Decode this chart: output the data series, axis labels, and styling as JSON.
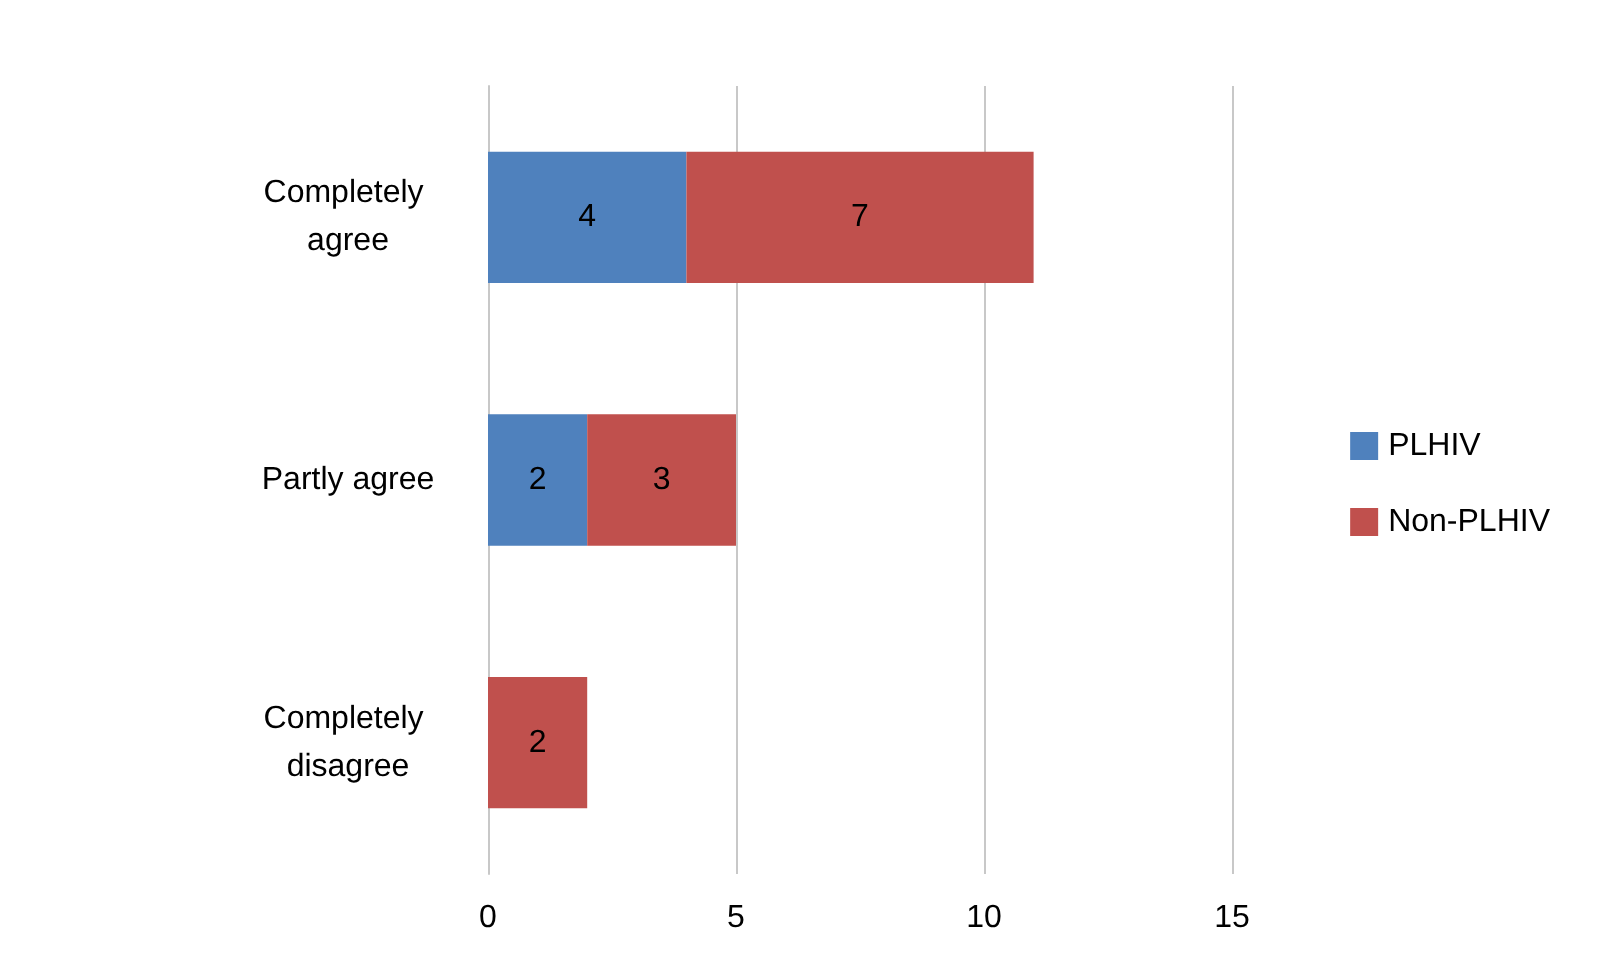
{
  "chart_data": {
    "type": "bar",
    "orientation": "horizontal",
    "stacked": true,
    "categories": [
      "Completely agree",
      "Partly agree",
      "Completely disagree"
    ],
    "series": [
      {
        "name": "PLHIV",
        "color": "#4f81bd",
        "values": [
          4,
          2,
          null
        ]
      },
      {
        "name": "Non-PLHIV",
        "color": "#c0504d",
        "values": [
          7,
          3,
          2
        ]
      }
    ],
    "xlim": [
      0,
      15
    ],
    "xticks": [
      0,
      5,
      10,
      15
    ],
    "grid": "x",
    "legend": "right",
    "data_labels": true
  }
}
